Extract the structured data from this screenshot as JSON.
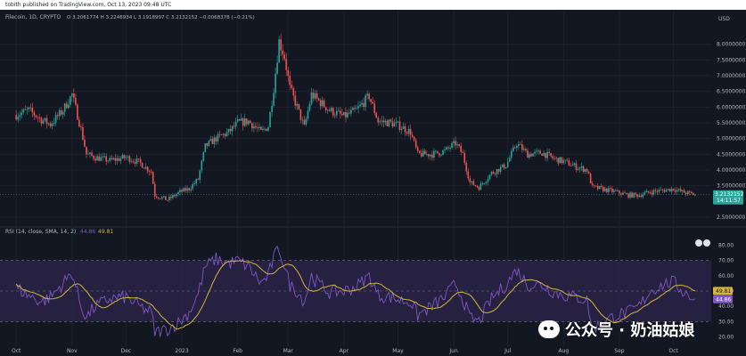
{
  "publisher_line": "tobith published on TradingView.com, Oct 13, 2023 09:48 UTC",
  "watermark": "公众号 · 奶油姑娘",
  "colors": {
    "background": "#131722",
    "grid": "#1e222d",
    "up": "#26a69a",
    "down": "#ef5350",
    "rsi": "#7e57c2",
    "rsi_ma": "#d4b43a",
    "rsi_band": "#2a2346",
    "price_label": "#26a69a",
    "text": "#b2b5be"
  },
  "chart_data": [
    {
      "type": "candlestick",
      "legend": {
        "title": "Filecoin, 1D, CRYPTO",
        "ohlc": "O 3.2061774  H 3.2246934  L 3.1918997  C 3.2132152  −0.0068378 (−0.21%)"
      },
      "currency": "USD",
      "x_labels": [
        "Oct",
        "Nov",
        "Dec",
        "2023",
        "Feb",
        "Mar",
        "Apr",
        "May",
        "Jun",
        "Jul",
        "Aug",
        "Sep",
        "Oct"
      ],
      "y_ticks": [
        "8.0000000",
        "7.5000000",
        "7.0000000",
        "6.5000000",
        "6.0000000",
        "5.5000000",
        "5.0000000",
        "4.5000000",
        "4.0000000",
        "3.5000000",
        "2.5000000"
      ],
      "ylim": [
        2.3,
        8.7
      ],
      "last_price": "3.2132152",
      "countdown": "14:11:57",
      "keypoints": [
        [
          "2022-10-01",
          5.75
        ],
        [
          "2022-10-08",
          5.9
        ],
        [
          "2022-10-15",
          5.6
        ],
        [
          "2022-10-20",
          5.45
        ],
        [
          "2022-10-27",
          5.9
        ],
        [
          "2022-11-01",
          6.4
        ],
        [
          "2022-11-06",
          5.3
        ],
        [
          "2022-11-09",
          4.5
        ],
        [
          "2022-11-14",
          4.4
        ],
        [
          "2022-11-22",
          4.3
        ],
        [
          "2022-12-01",
          4.4
        ],
        [
          "2022-12-08",
          4.25
        ],
        [
          "2022-12-15",
          3.95
        ],
        [
          "2022-12-17",
          3.2
        ],
        [
          "2022-12-24",
          3.05
        ],
        [
          "2022-12-31",
          3.3
        ],
        [
          "2023-01-05",
          3.4
        ],
        [
          "2023-01-10",
          3.7
        ],
        [
          "2023-01-14",
          4.75
        ],
        [
          "2023-01-20",
          5.0
        ],
        [
          "2023-01-27",
          5.2
        ],
        [
          "2023-02-01",
          5.5
        ],
        [
          "2023-02-07",
          5.55
        ],
        [
          "2023-02-14",
          5.2
        ],
        [
          "2023-02-18",
          5.4
        ],
        [
          "2023-02-21",
          6.6
        ],
        [
          "2023-02-24",
          8.1
        ],
        [
          "2023-02-27",
          7.6
        ],
        [
          "2023-03-02",
          6.6
        ],
        [
          "2023-03-06",
          6.0
        ],
        [
          "2023-03-10",
          5.35
        ],
        [
          "2023-03-14",
          6.4
        ],
        [
          "2023-03-18",
          6.2
        ],
        [
          "2023-03-24",
          5.9
        ],
        [
          "2023-04-01",
          5.7
        ],
        [
          "2023-04-08",
          5.9
        ],
        [
          "2023-04-15",
          6.35
        ],
        [
          "2023-04-20",
          5.55
        ],
        [
          "2023-04-27",
          5.5
        ],
        [
          "2023-05-02",
          5.4
        ],
        [
          "2023-05-08",
          5.2
        ],
        [
          "2023-05-12",
          4.5
        ],
        [
          "2023-05-20",
          4.5
        ],
        [
          "2023-05-27",
          4.6
        ],
        [
          "2023-06-02",
          4.85
        ],
        [
          "2023-06-06",
          4.5
        ],
        [
          "2023-06-10",
          3.6
        ],
        [
          "2023-06-15",
          3.45
        ],
        [
          "2023-06-22",
          3.9
        ],
        [
          "2023-06-30",
          4.15
        ],
        [
          "2023-07-06",
          4.85
        ],
        [
          "2023-07-12",
          4.5
        ],
        [
          "2023-07-20",
          4.55
        ],
        [
          "2023-07-27",
          4.35
        ],
        [
          "2023-08-02",
          4.25
        ],
        [
          "2023-08-08",
          4.1
        ],
        [
          "2023-08-14",
          4.0
        ],
        [
          "2023-08-17",
          3.45
        ],
        [
          "2023-08-22",
          3.4
        ],
        [
          "2023-08-30",
          3.3
        ],
        [
          "2023-09-06",
          3.2
        ],
        [
          "2023-09-12",
          3.2
        ],
        [
          "2023-09-18",
          3.3
        ],
        [
          "2023-09-25",
          3.35
        ],
        [
          "2023-10-01",
          3.4
        ],
        [
          "2023-10-06",
          3.3
        ],
        [
          "2023-10-13",
          3.21
        ]
      ]
    },
    {
      "type": "line",
      "legend": {
        "title": "RSI (14, close, SMA, 14, 2)",
        "values": [
          "44.86",
          "49.81"
        ]
      },
      "series": [
        {
          "name": "RSI",
          "current": "44.86"
        },
        {
          "name": "RSI-based MA",
          "current": "49.81"
        }
      ],
      "y_ticks": [
        "80.00",
        "70.00",
        "60.00",
        "50.00",
        "40.00",
        "30.00",
        "20.00"
      ],
      "ylim": [
        15,
        85
      ],
      "band": [
        30,
        70
      ],
      "rsi_keypoints": [
        [
          "2022-10-01",
          52
        ],
        [
          "2022-10-08",
          47
        ],
        [
          "2022-10-15",
          43
        ],
        [
          "2022-10-20",
          46
        ],
        [
          "2022-10-27",
          55
        ],
        [
          "2022-11-01",
          62
        ],
        [
          "2022-11-06",
          40
        ],
        [
          "2022-11-09",
          33
        ],
        [
          "2022-11-14",
          40
        ],
        [
          "2022-11-22",
          45
        ],
        [
          "2022-12-01",
          46
        ],
        [
          "2022-12-08",
          40
        ],
        [
          "2022-12-15",
          36
        ],
        [
          "2022-12-17",
          23
        ],
        [
          "2022-12-24",
          25
        ],
        [
          "2022-12-31",
          30
        ],
        [
          "2023-01-05",
          36
        ],
        [
          "2023-01-10",
          48
        ],
        [
          "2023-01-14",
          66
        ],
        [
          "2023-01-20",
          71
        ],
        [
          "2023-01-27",
          68
        ],
        [
          "2023-02-01",
          70
        ],
        [
          "2023-02-07",
          66
        ],
        [
          "2023-02-14",
          55
        ],
        [
          "2023-02-18",
          60
        ],
        [
          "2023-02-21",
          72
        ],
        [
          "2023-02-24",
          78
        ],
        [
          "2023-02-27",
          66
        ],
        [
          "2023-03-02",
          54
        ],
        [
          "2023-03-06",
          50
        ],
        [
          "2023-03-10",
          43
        ],
        [
          "2023-03-14",
          60
        ],
        [
          "2023-03-18",
          55
        ],
        [
          "2023-03-24",
          49
        ],
        [
          "2023-04-01",
          50
        ],
        [
          "2023-04-08",
          53
        ],
        [
          "2023-04-15",
          60
        ],
        [
          "2023-04-20",
          47
        ],
        [
          "2023-04-27",
          46
        ],
        [
          "2023-05-02",
          44
        ],
        [
          "2023-05-08",
          43
        ],
        [
          "2023-05-12",
          34
        ],
        [
          "2023-05-20",
          40
        ],
        [
          "2023-05-27",
          46
        ],
        [
          "2023-06-02",
          55
        ],
        [
          "2023-06-06",
          45
        ],
        [
          "2023-06-10",
          32
        ],
        [
          "2023-06-15",
          30
        ],
        [
          "2023-06-22",
          45
        ],
        [
          "2023-06-30",
          54
        ],
        [
          "2023-07-06",
          64
        ],
        [
          "2023-07-12",
          54
        ],
        [
          "2023-07-20",
          54
        ],
        [
          "2023-07-27",
          49
        ],
        [
          "2023-08-02",
          47
        ],
        [
          "2023-08-08",
          46
        ],
        [
          "2023-08-14",
          44
        ],
        [
          "2023-08-17",
          25
        ],
        [
          "2023-08-22",
          29
        ],
        [
          "2023-08-30",
          34
        ],
        [
          "2023-09-06",
          36
        ],
        [
          "2023-09-12",
          40
        ],
        [
          "2023-09-18",
          50
        ],
        [
          "2023-09-25",
          54
        ],
        [
          "2023-10-01",
          56
        ],
        [
          "2023-10-06",
          50
        ],
        [
          "2023-10-13",
          44.86
        ]
      ]
    }
  ]
}
